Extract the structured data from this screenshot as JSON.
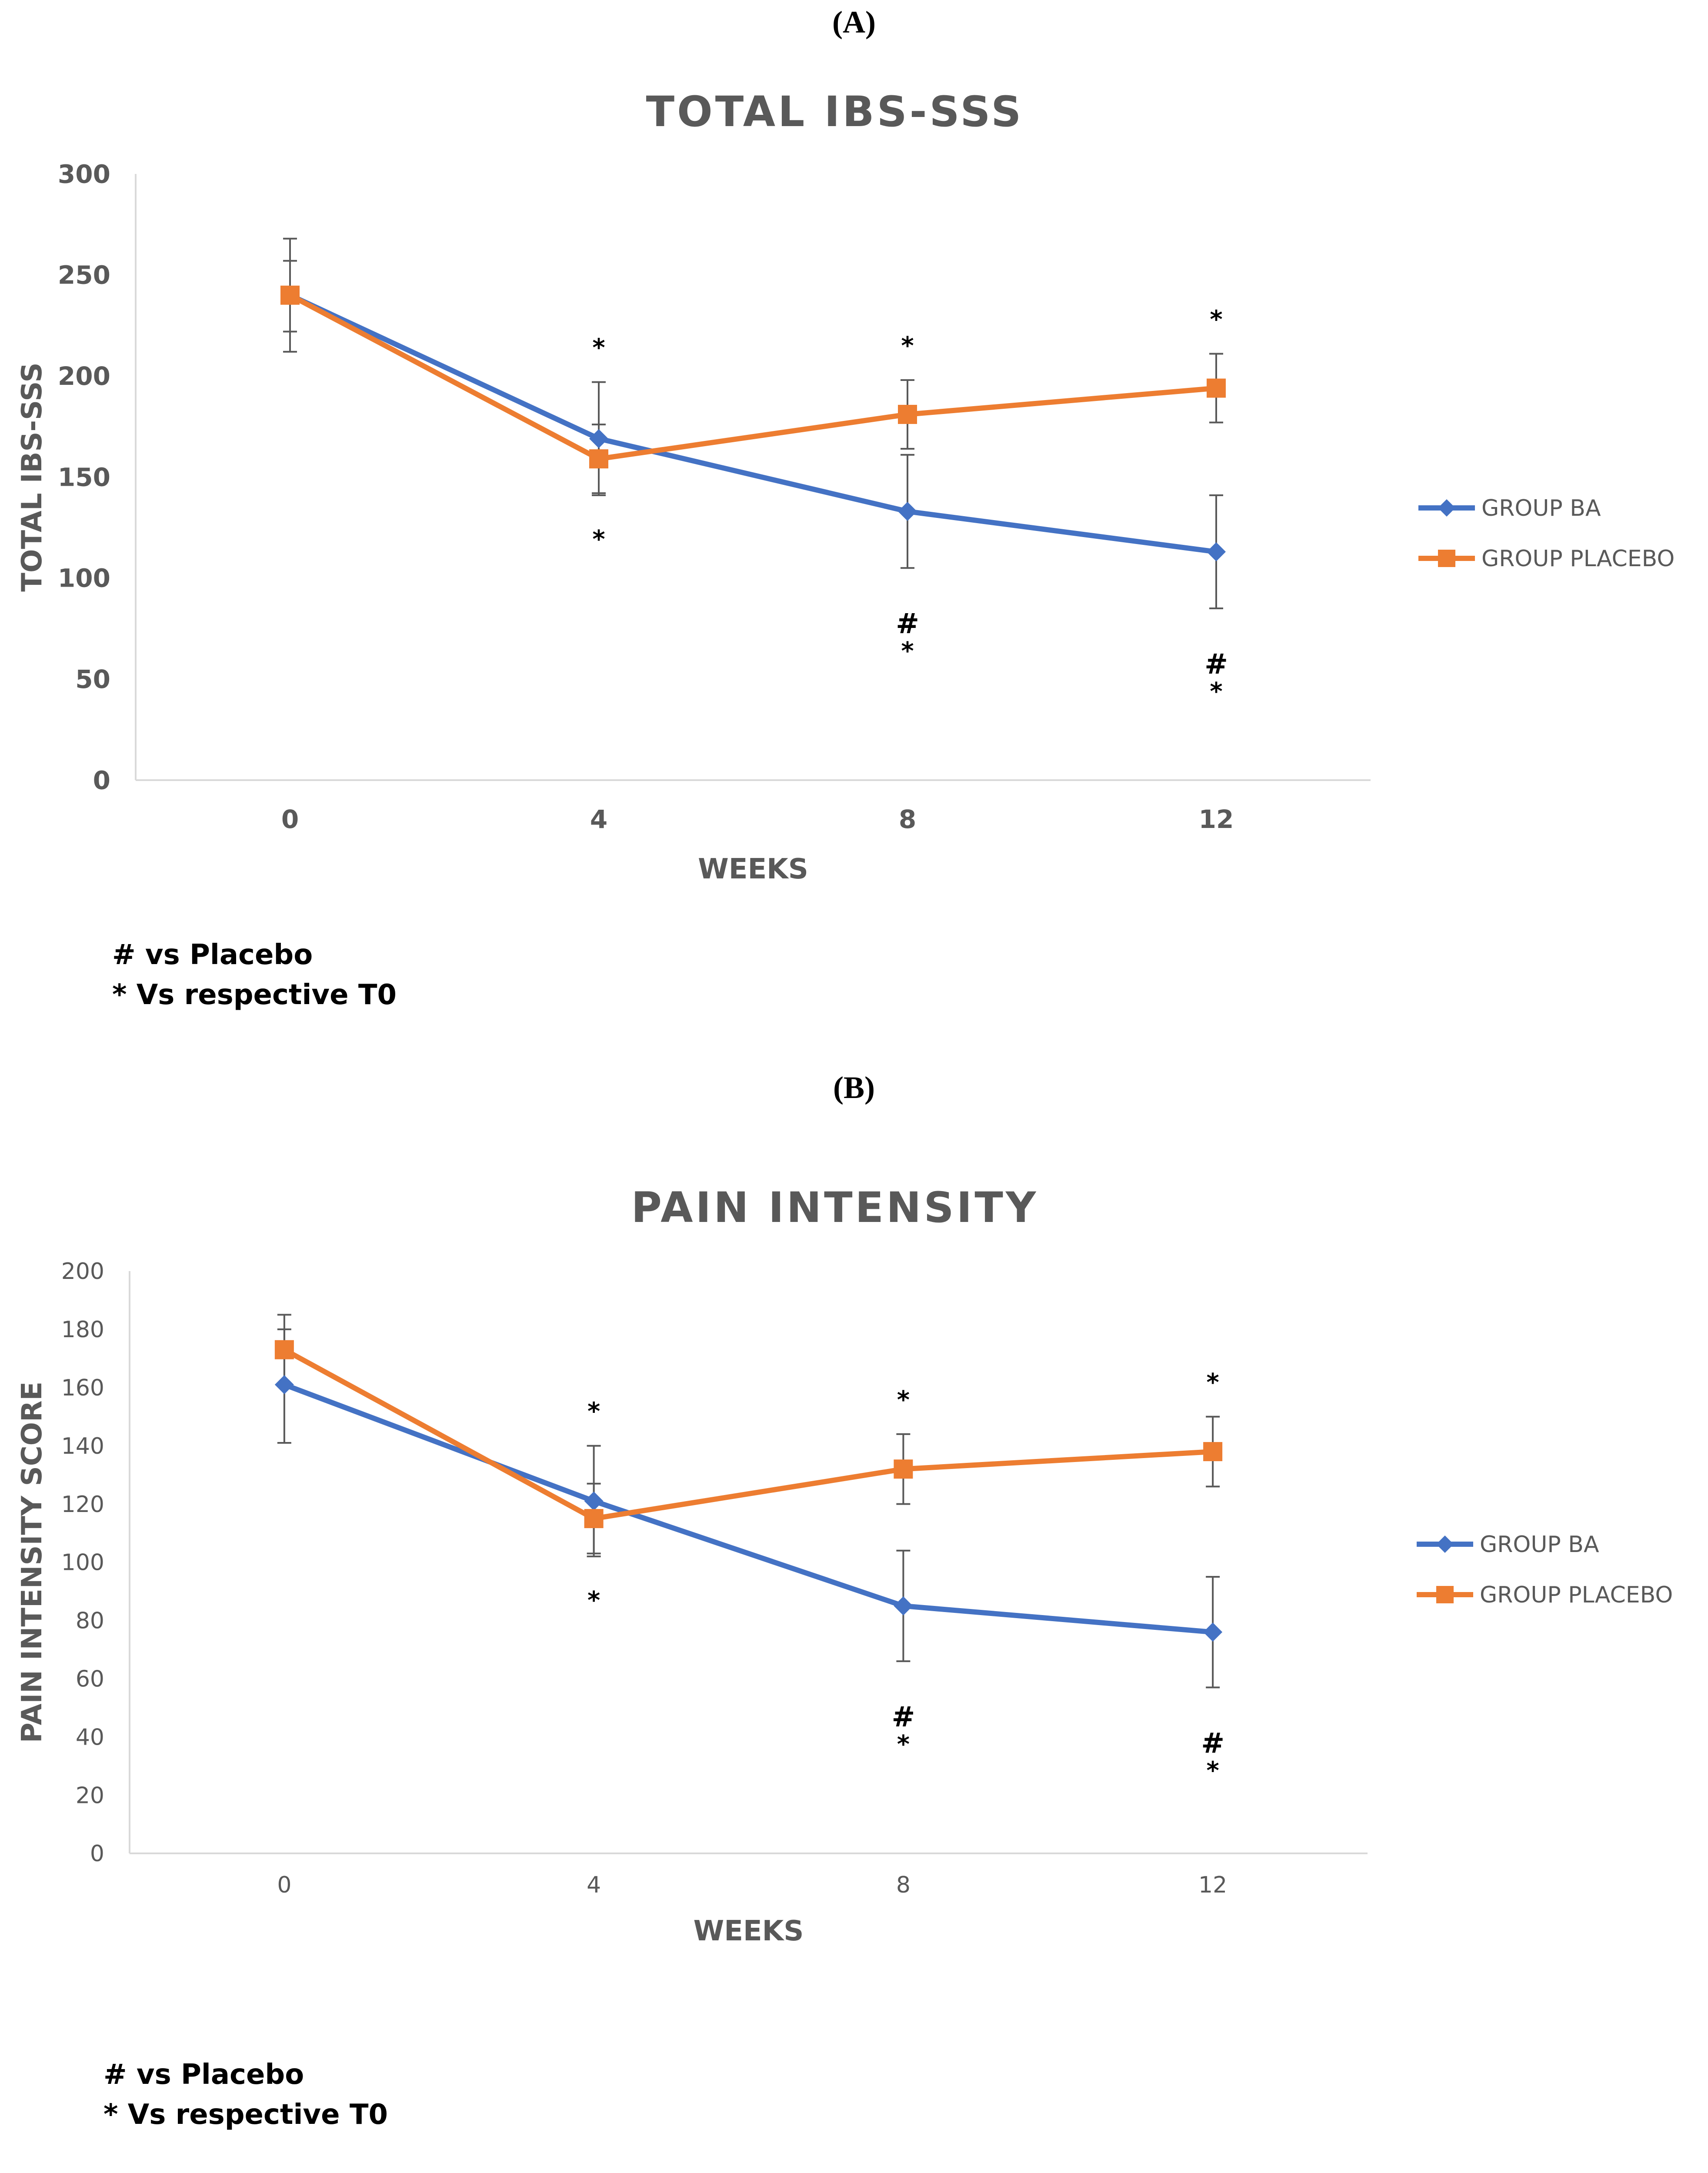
{
  "colors": {
    "ba": "#4472c4",
    "placebo": "#ed7d31",
    "axis": "#d9d9d9",
    "text": "#595959",
    "errbar": "#595959"
  },
  "chart_data": [
    {
      "panel_label": "(A)",
      "type": "line",
      "title": "TOTAL IBS-SSS",
      "xlabel": "WEEKS",
      "ylabel": "TOTAL IBS-SSS",
      "categories": [
        "0",
        "4",
        "8",
        "12"
      ],
      "ylim": [
        0,
        300
      ],
      "yticks": [
        "0",
        "50",
        "100",
        "150",
        "200",
        "250",
        "300"
      ],
      "grid": false,
      "legend_position": "right",
      "series": [
        {
          "name": "GROUP BA",
          "marker": "diamond",
          "values": [
            240,
            169,
            133,
            113
          ],
          "err_low": [
            222,
            141,
            105,
            85
          ],
          "err_high": [
            257,
            197,
            161,
            141
          ]
        },
        {
          "name": "GROUP PLACEBO",
          "marker": "square",
          "values": [
            240,
            159,
            181,
            194
          ],
          "err_low": [
            212,
            142,
            164,
            177
          ],
          "err_high": [
            268,
            176,
            198,
            211
          ]
        }
      ],
      "annotations": [
        {
          "category": "4",
          "above": [
            "*"
          ],
          "below": [
            "*"
          ]
        },
        {
          "category": "8",
          "above": [
            "*"
          ],
          "below": [
            "#",
            "*"
          ]
        },
        {
          "category": "12",
          "above": [
            "*"
          ],
          "below": [
            "#",
            "*"
          ]
        }
      ],
      "footnotes": [
        "# vs Placebo",
        "* Vs respective T0"
      ]
    },
    {
      "panel_label": "(B)",
      "type": "line",
      "title": "PAIN INTENSITY",
      "xlabel": "WEEKS",
      "ylabel": "PAIN INTENSITY SCORE",
      "categories": [
        "0",
        "4",
        "8",
        "12"
      ],
      "ylim": [
        0,
        200
      ],
      "yticks": [
        "0",
        "20",
        "40",
        "60",
        "80",
        "100",
        "120",
        "140",
        "160",
        "180",
        "200"
      ],
      "grid": false,
      "legend_position": "right",
      "series": [
        {
          "name": "GROUP BA",
          "marker": "diamond",
          "values": [
            161,
            121,
            85,
            76
          ],
          "err_low": [
            141,
            102,
            66,
            57
          ],
          "err_high": [
            180,
            140,
            104,
            95
          ]
        },
        {
          "name": "GROUP PLACEBO",
          "marker": "square",
          "values": [
            173,
            115,
            132,
            138
          ],
          "err_low": [
            161,
            103,
            120,
            126
          ],
          "err_high": [
            185,
            127,
            144,
            150
          ]
        }
      ],
      "annotations": [
        {
          "category": "4",
          "above": [
            "*"
          ],
          "below": [
            "*"
          ]
        },
        {
          "category": "8",
          "above": [
            "*"
          ],
          "below": [
            "#",
            "*"
          ]
        },
        {
          "category": "12",
          "above": [
            "*"
          ],
          "below": [
            "#",
            "*"
          ]
        }
      ],
      "footnotes": [
        "# vs Placebo",
        "* Vs respective T0"
      ]
    }
  ]
}
